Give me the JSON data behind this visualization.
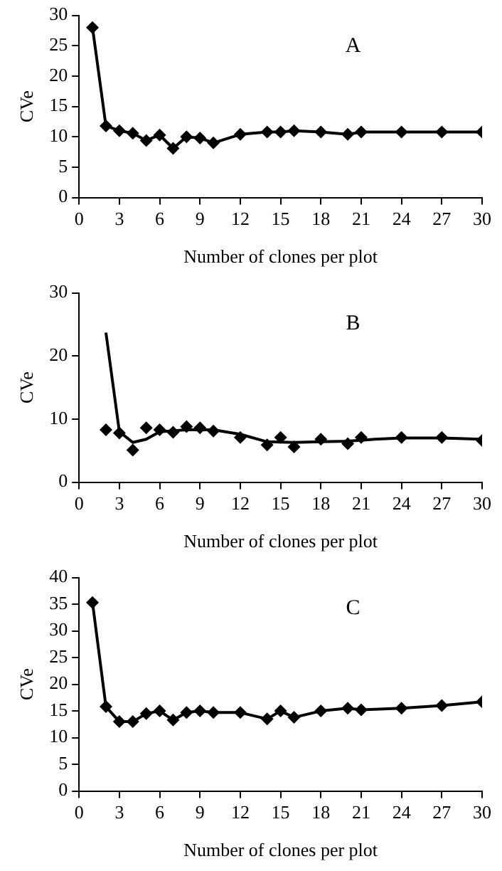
{
  "chart_data": [
    {
      "type": "line",
      "xlabel": "Number of clones per plot",
      "ylabel": "CVe",
      "annotations": [
        "A"
      ],
      "marker": "diamond",
      "grid": false,
      "xlim": [
        0,
        30
      ],
      "xticks": [
        0,
        3,
        6,
        9,
        12,
        15,
        18,
        21,
        24,
        27,
        30
      ],
      "ylim": [
        0,
        30
      ],
      "yticks": [
        0,
        5,
        10,
        15,
        20,
        25,
        30
      ],
      "series": [
        {
          "color": "#000000",
          "x": [
            1,
            2,
            3,
            4,
            5,
            6,
            7,
            8,
            9,
            10,
            12,
            14,
            15,
            16,
            18,
            20,
            21,
            24,
            27,
            30
          ],
          "values": [
            28,
            11.8,
            11,
            10.6,
            9.4,
            10.3,
            8.1,
            10,
            9.8,
            9,
            10.4,
            10.8,
            10.8,
            11,
            10.8,
            10.4,
            10.8,
            10.8,
            10.8,
            10.8
          ]
        }
      ]
    },
    {
      "type": "scatter",
      "xlabel": "Number of clones per plot",
      "ylabel": "CVe",
      "annotations": [
        "B"
      ],
      "marker": "diamond",
      "grid": false,
      "xlim": [
        0,
        30
      ],
      "xticks": [
        0,
        3,
        6,
        9,
        12,
        15,
        18,
        21,
        24,
        27,
        30
      ],
      "ylim": [
        0,
        30
      ],
      "yticks": [
        0,
        10,
        20,
        30
      ],
      "series": [
        {
          "color": "#000000",
          "x": [
            2,
            3,
            4,
            5,
            6,
            7,
            8,
            9,
            10,
            12,
            14,
            15,
            16,
            18,
            20,
            21,
            24,
            27,
            30
          ],
          "values": [
            8.3,
            7.8,
            5.1,
            8.6,
            8.3,
            7.9,
            8.8,
            8.6,
            8.1,
            7.1,
            5.9,
            7.1,
            5.6,
            6.8,
            6.1,
            7.1,
            7.1,
            7.1,
            6.6
          ]
        },
        {
          "type": "line",
          "marker": "none",
          "color": "#000000",
          "x": [
            2,
            3,
            4,
            5,
            6,
            8,
            10,
            12,
            14,
            16,
            18,
            20,
            22,
            24,
            27,
            30
          ],
          "values": [
            23.7,
            8,
            6.3,
            6.8,
            8,
            8.3,
            8.3,
            7.6,
            6.4,
            6.3,
            6.4,
            6.5,
            6.8,
            7,
            7,
            6.8
          ]
        }
      ]
    },
    {
      "type": "line",
      "xlabel": "Number of clones per plot",
      "ylabel": "CVe",
      "annotations": [
        "C"
      ],
      "marker": "diamond",
      "grid": false,
      "xlim": [
        0,
        30
      ],
      "xticks": [
        0,
        3,
        6,
        9,
        12,
        15,
        18,
        21,
        24,
        27,
        30
      ],
      "ylim": [
        0,
        40
      ],
      "yticks": [
        0,
        5,
        10,
        15,
        20,
        25,
        30,
        35,
        40
      ],
      "series": [
        {
          "color": "#000000",
          "x": [
            1,
            2,
            3,
            4,
            5,
            6,
            7,
            8,
            9,
            10,
            12,
            14,
            15,
            16,
            18,
            20,
            21,
            24,
            27,
            30
          ],
          "values": [
            35.3,
            15.8,
            13,
            13,
            14.5,
            15,
            13.3,
            14.7,
            15,
            14.7,
            14.7,
            13.5,
            15,
            13.8,
            15,
            15.5,
            15.2,
            15.5,
            16,
            16.7
          ]
        }
      ]
    }
  ]
}
